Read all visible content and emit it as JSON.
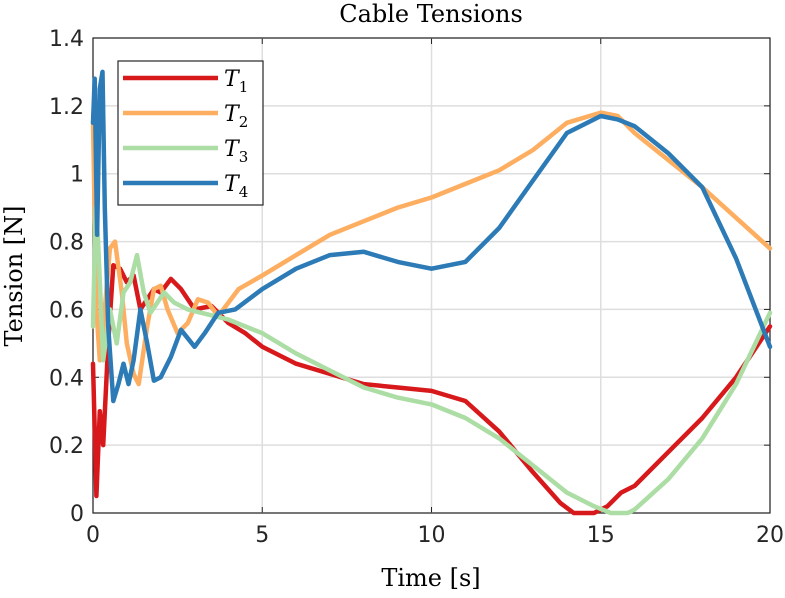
{
  "chart_data": {
    "type": "line",
    "title": "Cable Tensions",
    "xlabel": "Time [s]",
    "ylabel": "Tension [N]",
    "xlim": [
      0,
      20
    ],
    "ylim": [
      0,
      1.4
    ],
    "xticks": [
      0,
      5,
      10,
      15,
      20
    ],
    "xtick_labels": [
      "0",
      "5",
      "10",
      "15",
      "20"
    ],
    "yticks": [
      0,
      0.2,
      0.4,
      0.6,
      0.8,
      1.0,
      1.2,
      1.4
    ],
    "ytick_labels": [
      "0",
      "0.2",
      "0.4",
      "0.6",
      "0.8",
      "1",
      "1.2",
      "1.4"
    ],
    "grid": true,
    "legend_position": "top-left",
    "series": [
      {
        "name": "T",
        "subscript": "1",
        "color": "#d7191c",
        "points": [
          [
            0,
            0.44
          ],
          [
            0.1,
            0.05
          ],
          [
            0.2,
            0.3
          ],
          [
            0.3,
            0.2
          ],
          [
            0.45,
            0.5
          ],
          [
            0.6,
            0.73
          ],
          [
            0.8,
            0.72
          ],
          [
            1.0,
            0.68
          ],
          [
            1.2,
            0.7
          ],
          [
            1.4,
            0.6
          ],
          [
            1.6,
            0.63
          ],
          [
            1.8,
            0.66
          ],
          [
            2.0,
            0.65
          ],
          [
            2.3,
            0.69
          ],
          [
            2.6,
            0.66
          ],
          [
            3.0,
            0.6
          ],
          [
            3.5,
            0.61
          ],
          [
            4.0,
            0.56
          ],
          [
            4.5,
            0.53
          ],
          [
            5.0,
            0.49
          ],
          [
            6.0,
            0.44
          ],
          [
            7.0,
            0.41
          ],
          [
            8.0,
            0.38
          ],
          [
            9.0,
            0.37
          ],
          [
            10.0,
            0.36
          ],
          [
            11.0,
            0.33
          ],
          [
            12.0,
            0.24
          ],
          [
            13.0,
            0.12
          ],
          [
            13.8,
            0.03
          ],
          [
            14.2,
            0.0
          ],
          [
            14.8,
            0.0
          ],
          [
            15.2,
            0.02
          ],
          [
            15.6,
            0.06
          ],
          [
            16.0,
            0.08
          ],
          [
            17.0,
            0.18
          ],
          [
            18.0,
            0.28
          ],
          [
            19.0,
            0.4
          ],
          [
            20.0,
            0.55
          ]
        ]
      },
      {
        "name": "T",
        "subscript": "2",
        "color": "#fdae61",
        "points": [
          [
            0,
            1.15
          ],
          [
            0.1,
            0.6
          ],
          [
            0.2,
            0.45
          ],
          [
            0.35,
            0.6
          ],
          [
            0.5,
            0.78
          ],
          [
            0.65,
            0.8
          ],
          [
            0.85,
            0.65
          ],
          [
            1.0,
            0.5
          ],
          [
            1.2,
            0.41
          ],
          [
            1.35,
            0.38
          ],
          [
            1.6,
            0.55
          ],
          [
            1.8,
            0.66
          ],
          [
            2.0,
            0.67
          ],
          [
            2.2,
            0.6
          ],
          [
            2.5,
            0.53
          ],
          [
            2.8,
            0.56
          ],
          [
            3.1,
            0.63
          ],
          [
            3.4,
            0.62
          ],
          [
            3.7,
            0.58
          ],
          [
            4.0,
            0.62
          ],
          [
            4.3,
            0.66
          ],
          [
            5.0,
            0.7
          ],
          [
            6.0,
            0.76
          ],
          [
            7.0,
            0.82
          ],
          [
            8.0,
            0.86
          ],
          [
            9.0,
            0.9
          ],
          [
            10.0,
            0.93
          ],
          [
            11.0,
            0.97
          ],
          [
            12.0,
            1.01
          ],
          [
            13.0,
            1.07
          ],
          [
            14.0,
            1.15
          ],
          [
            15.0,
            1.18
          ],
          [
            15.5,
            1.17
          ],
          [
            16.0,
            1.12
          ],
          [
            17.0,
            1.04
          ],
          [
            18.0,
            0.96
          ],
          [
            19.0,
            0.87
          ],
          [
            20.0,
            0.78
          ]
        ]
      },
      {
        "name": "T",
        "subscript": "3",
        "color": "#abdda4",
        "points": [
          [
            0,
            0.55
          ],
          [
            0.08,
            0.9
          ],
          [
            0.15,
            0.8
          ],
          [
            0.3,
            0.45
          ],
          [
            0.5,
            0.6
          ],
          [
            0.7,
            0.5
          ],
          [
            0.9,
            0.65
          ],
          [
            1.1,
            0.68
          ],
          [
            1.3,
            0.76
          ],
          [
            1.5,
            0.65
          ],
          [
            1.7,
            0.59
          ],
          [
            1.9,
            0.62
          ],
          [
            2.1,
            0.65
          ],
          [
            2.4,
            0.62
          ],
          [
            2.8,
            0.6
          ],
          [
            3.2,
            0.59
          ],
          [
            3.6,
            0.58
          ],
          [
            4.0,
            0.57
          ],
          [
            5.0,
            0.53
          ],
          [
            6.0,
            0.47
          ],
          [
            7.0,
            0.42
          ],
          [
            8.0,
            0.37
          ],
          [
            9.0,
            0.34
          ],
          [
            10.0,
            0.32
          ],
          [
            11.0,
            0.28
          ],
          [
            12.0,
            0.22
          ],
          [
            13.0,
            0.14
          ],
          [
            14.0,
            0.06
          ],
          [
            14.8,
            0.02
          ],
          [
            15.3,
            0.0
          ],
          [
            15.8,
            0.0
          ],
          [
            16.0,
            0.01
          ],
          [
            17.0,
            0.1
          ],
          [
            18.0,
            0.22
          ],
          [
            19.0,
            0.38
          ],
          [
            20.0,
            0.59
          ]
        ]
      },
      {
        "name": "T",
        "subscript": "4",
        "color": "#2c7bb6",
        "points": [
          [
            0,
            1.15
          ],
          [
            0.05,
            1.28
          ],
          [
            0.12,
            0.82
          ],
          [
            0.2,
            1.25
          ],
          [
            0.28,
            1.3
          ],
          [
            0.35,
            0.9
          ],
          [
            0.45,
            0.55
          ],
          [
            0.6,
            0.33
          ],
          [
            0.75,
            0.38
          ],
          [
            0.9,
            0.44
          ],
          [
            1.05,
            0.38
          ],
          [
            1.2,
            0.45
          ],
          [
            1.4,
            0.6
          ],
          [
            1.6,
            0.5
          ],
          [
            1.8,
            0.39
          ],
          [
            2.0,
            0.4
          ],
          [
            2.3,
            0.46
          ],
          [
            2.6,
            0.54
          ],
          [
            3.0,
            0.49
          ],
          [
            3.3,
            0.53
          ],
          [
            3.7,
            0.59
          ],
          [
            4.2,
            0.6
          ],
          [
            5.0,
            0.66
          ],
          [
            6.0,
            0.72
          ],
          [
            7.0,
            0.76
          ],
          [
            8.0,
            0.77
          ],
          [
            9.0,
            0.74
          ],
          [
            10.0,
            0.72
          ],
          [
            11.0,
            0.74
          ],
          [
            12.0,
            0.84
          ],
          [
            13.0,
            0.98
          ],
          [
            14.0,
            1.12
          ],
          [
            15.0,
            1.17
          ],
          [
            15.5,
            1.16
          ],
          [
            16.0,
            1.14
          ],
          [
            17.0,
            1.06
          ],
          [
            18.0,
            0.96
          ],
          [
            19.0,
            0.75
          ],
          [
            20.0,
            0.49
          ]
        ]
      }
    ]
  }
}
